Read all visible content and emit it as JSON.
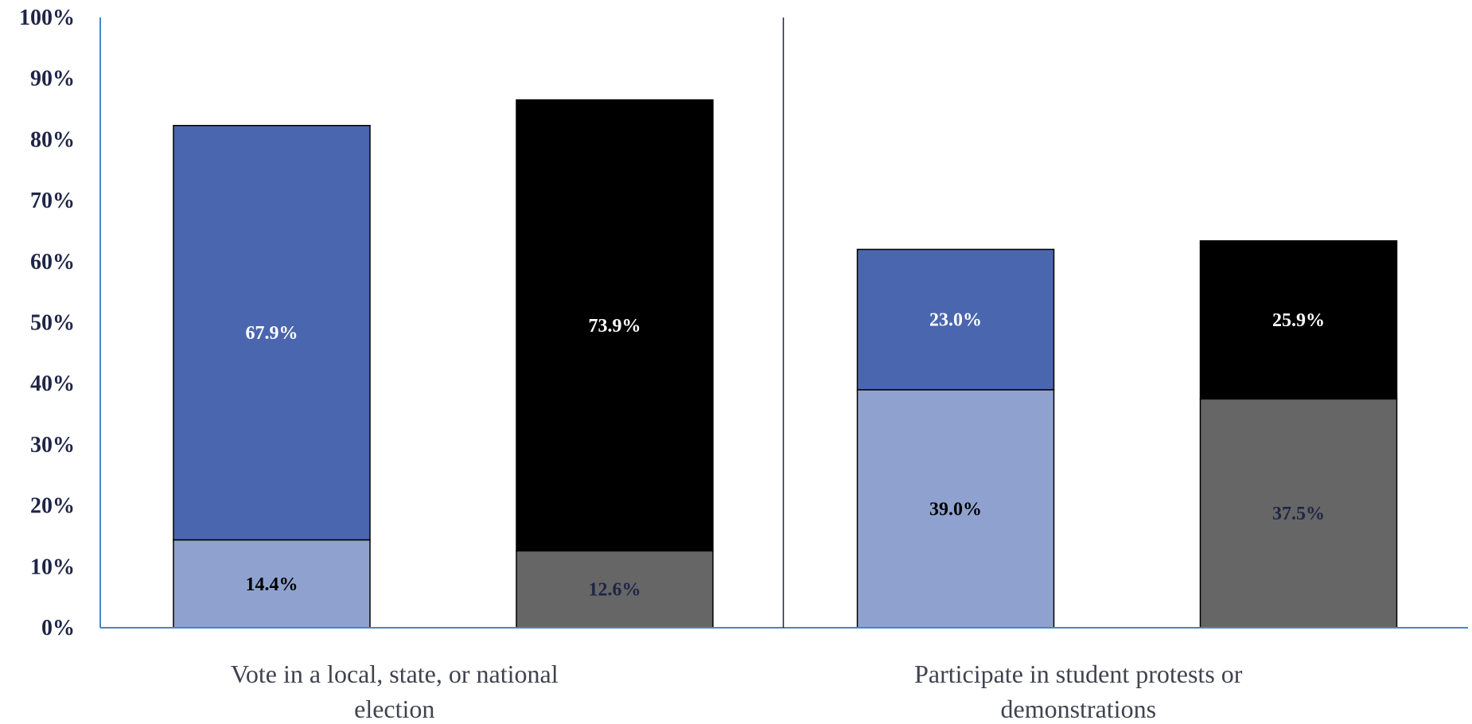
{
  "chart_data": {
    "type": "bar",
    "stacked": true,
    "categories": [
      [
        "Vote in a local, state, or national",
        "election"
      ],
      [
        "Participate in student protests or",
        "demonstrations"
      ]
    ],
    "bars": [
      {
        "category": 0,
        "segments": [
          {
            "value": 14.4,
            "label": "14.4%",
            "color": "#8fa2cf",
            "label_color": "#000000"
          },
          {
            "value": 67.9,
            "label": "67.9%",
            "color": "#4a66ae",
            "label_color": "#ffffff"
          }
        ]
      },
      {
        "category": 0,
        "segments": [
          {
            "value": 12.6,
            "label": "12.6%",
            "color": "#666666",
            "label_color": "#1f2546"
          },
          {
            "value": 73.9,
            "label": "73.9%",
            "color": "#000000",
            "label_color": "#ffffff"
          }
        ]
      },
      {
        "category": 1,
        "segments": [
          {
            "value": 39.0,
            "label": "39.0%",
            "color": "#8fa2cf",
            "label_color": "#000000"
          },
          {
            "value": 23.0,
            "label": "23.0%",
            "color": "#4a66ae",
            "label_color": "#ffffff"
          }
        ]
      },
      {
        "category": 1,
        "segments": [
          {
            "value": 37.5,
            "label": "37.5%",
            "color": "#666666",
            "label_color": "#1f2546"
          },
          {
            "value": 25.9,
            "label": "25.9%",
            "color": "#000000",
            "label_color": "#ffffff"
          }
        ]
      }
    ],
    "y_ticks": [
      "0%",
      "10%",
      "20%",
      "30%",
      "40%",
      "50%",
      "60%",
      "70%",
      "80%",
      "90%",
      "100%"
    ],
    "ylim": [
      0,
      100
    ],
    "title": "",
    "xlabel": "",
    "ylabel": "",
    "legend": "none",
    "grid": false,
    "colors": {
      "axis": "#4a86c8",
      "divider": "#1f2546",
      "tick_text": "#1f2546",
      "category_text": "#40434f"
    }
  }
}
